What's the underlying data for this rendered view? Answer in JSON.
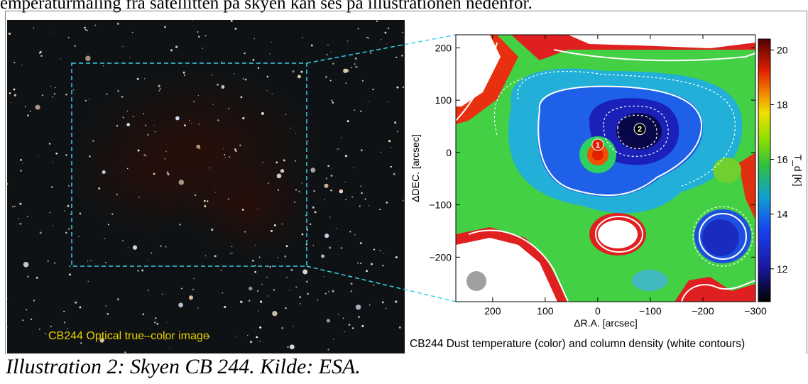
{
  "intro_text": "emperaturmåling fra satellitten på skyen kan ses på illustrationen nedenfor.",
  "optical_label": "CB244 Optical true–color image",
  "map_caption": "CB244 Dust temperature (color) and column density (white contours)",
  "figure_caption": "Illustration 2: Skyen CB 244. Kilde: ESA.",
  "colors": {
    "optical_label": "#e8d000",
    "zoom_box": "#36d0e8",
    "contour": "#ffffff"
  },
  "markers": [
    {
      "label": "1",
      "ra": 0,
      "dec": 15
    },
    {
      "label": "2",
      "ra": -80,
      "dec": 45
    }
  ],
  "chart_data": {
    "type": "heatmap",
    "title": "",
    "xlabel": "ΔR.A. [arcsec]",
    "ylabel": "ΔDEC. [arcsec]",
    "xlim": [
      270,
      -300
    ],
    "ylim": [
      -285,
      225
    ],
    "xticks": [
      200,
      100,
      0,
      -100,
      -200,
      -300
    ],
    "xtick_labels": [
      "200",
      "100",
      "0",
      "−100",
      "−200",
      "−300"
    ],
    "yticks": [
      200,
      100,
      0,
      -100,
      -200
    ],
    "ytick_labels": [
      "200",
      "100",
      "0",
      "−100",
      "−200"
    ],
    "colorbar": {
      "label": "T_d [K]",
      "range": [
        10.8,
        20.4
      ],
      "ticks": [
        12,
        14,
        16,
        18,
        20
      ],
      "tick_labels": [
        "12",
        "14",
        "16",
        "18",
        "20"
      ]
    }
  }
}
